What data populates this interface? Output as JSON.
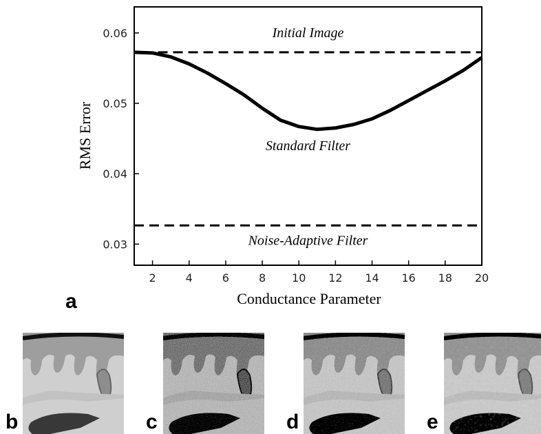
{
  "chart_data": {
    "type": "line",
    "x_label": "Conductance Parameter",
    "y_label": "RMS Error",
    "x": [
      1,
      2,
      3,
      4,
      5,
      6,
      7,
      8,
      9,
      10,
      11,
      12,
      13,
      14,
      15,
      16,
      17,
      18,
      19,
      20
    ],
    "series": [
      {
        "name": "Standard Filter",
        "color": "#000000",
        "values": [
          0.05725,
          0.05716,
          0.0566,
          0.0556,
          0.0543,
          0.0528,
          0.0512,
          0.0493,
          0.0476,
          0.0467,
          0.0463,
          0.0465,
          0.047,
          0.0478,
          0.049,
          0.0504,
          0.0518,
          0.0532,
          0.0547,
          0.0565
        ]
      }
    ],
    "reference_lines": [
      {
        "name": "Initial Image",
        "value": 0.05725
      },
      {
        "name": "Noise-Adaptive Filter",
        "value": 0.03265
      }
    ],
    "xlim": [
      1,
      20
    ],
    "xticks": [
      2,
      4,
      6,
      8,
      10,
      12,
      14,
      16,
      18,
      20
    ],
    "ylim": [
      0.027,
      0.0637
    ],
    "yticks": [
      0.03,
      0.04,
      0.05,
      0.06
    ],
    "grid": false
  },
  "panel_labels": [
    "a",
    "b",
    "c",
    "d",
    "e"
  ]
}
